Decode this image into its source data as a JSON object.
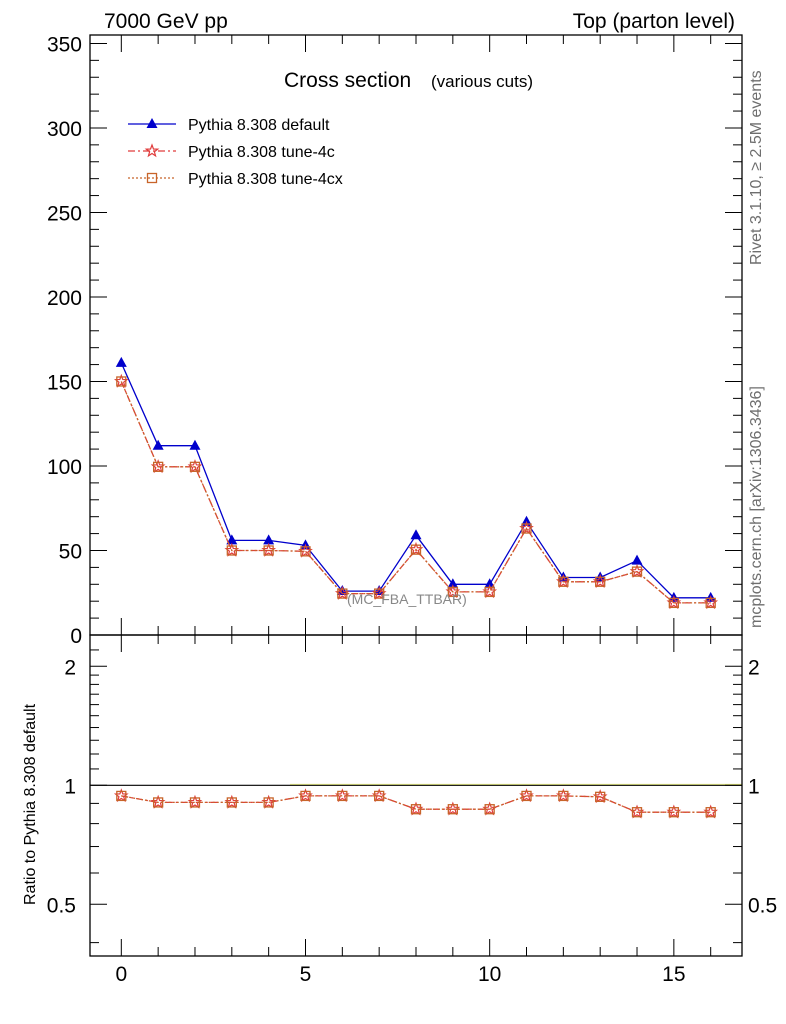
{
  "header": {
    "left": "7000 GeV pp",
    "right": "Top (parton level)"
  },
  "side_labels": {
    "rivet": "Rivet 3.1.10, ≥ 2.5M events",
    "mcplots": "mcplots.cern.ch [arXiv:1306.3436]"
  },
  "chart_data": [
    {
      "type": "line",
      "title": "Cross section",
      "subtitle": "(various cuts)",
      "annotation": "(MC_FBA_TTBAR)",
      "xlabel": "",
      "ylabel": "",
      "xlim": [
        -0.85,
        16.85
      ],
      "ylim": [
        0,
        355
      ],
      "yticks": [
        0,
        50,
        100,
        150,
        200,
        250,
        300,
        350
      ],
      "x": [
        0,
        1,
        2,
        3,
        4,
        5,
        6,
        7,
        8,
        9,
        10,
        11,
        12,
        13,
        14,
        15,
        16
      ],
      "series": [
        {
          "name": "Pythia 8.308 default",
          "color": "#0000cc",
          "marker": "triangle",
          "dash": "solid",
          "values": [
            161,
            112,
            112,
            56,
            56,
            53,
            26,
            26,
            59,
            30,
            30,
            67,
            34,
            34,
            44,
            22,
            22
          ]
        },
        {
          "name": "Pythia 8.308 tune-4c",
          "color": "#e03c3c",
          "marker": "star",
          "dash": "dashdot",
          "values": [
            150,
            99.5,
            99.5,
            50,
            50,
            49.5,
            24.5,
            24.5,
            50.5,
            25.5,
            25.5,
            63,
            31.5,
            31.5,
            37.5,
            19,
            19
          ]
        },
        {
          "name": "Pythia 8.308 tune-4cx",
          "color": "#c8642a",
          "marker": "square",
          "dash": "dotted",
          "values": [
            150,
            99.5,
            99.5,
            50,
            50,
            49.5,
            24.5,
            24.5,
            50.5,
            25.5,
            25.5,
            63,
            31.5,
            31.5,
            37.5,
            19,
            19
          ]
        }
      ]
    },
    {
      "type": "line",
      "title": "",
      "xlabel": "",
      "ylabel": "Ratio to Pythia 8.308 default",
      "xlim": [
        -0.85,
        16.85
      ],
      "ylim": [
        0.37,
        2.4
      ],
      "scale_y": "log",
      "xticks": [
        0,
        5,
        10,
        15
      ],
      "yticks": [
        0.5,
        1,
        2
      ],
      "reference": 1,
      "x": [
        0,
        1,
        2,
        3,
        4,
        5,
        6,
        7,
        8,
        9,
        10,
        11,
        12,
        13,
        14,
        15,
        16
      ],
      "series": [
        {
          "name": "Pythia 8.308 tune-4c",
          "color": "#e03c3c",
          "marker": "star",
          "values": [
            0.94,
            0.905,
            0.905,
            0.905,
            0.905,
            0.94,
            0.94,
            0.94,
            0.87,
            0.87,
            0.87,
            0.94,
            0.94,
            0.935,
            0.855,
            0.855,
            0.855
          ]
        },
        {
          "name": "Pythia 8.308 tune-4cx",
          "color": "#c8642a",
          "marker": "square",
          "values": [
            0.94,
            0.905,
            0.905,
            0.905,
            0.905,
            0.94,
            0.94,
            0.94,
            0.87,
            0.87,
            0.87,
            0.94,
            0.94,
            0.935,
            0.855,
            0.855,
            0.855
          ]
        }
      ]
    }
  ]
}
